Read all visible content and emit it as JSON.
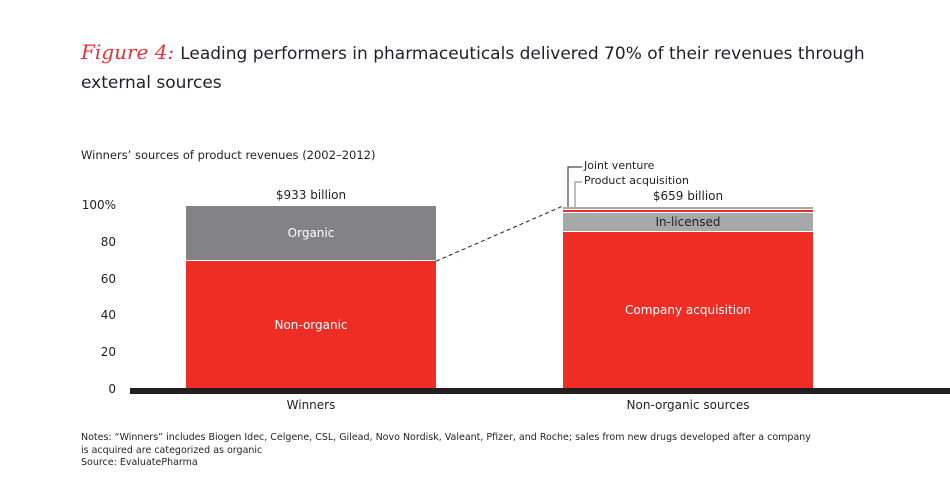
{
  "title": {
    "figure_label": "Figure 4:",
    "text": "Leading performers in pharmaceuticals delivered 70% of their revenues through external sources"
  },
  "chart_data": {
    "type": "bar",
    "stacked": true,
    "subtitle": "Winners’ sources of product revenues (2002–2012)",
    "categories": [
      "Winners",
      "Non-organic sources"
    ],
    "ylim": [
      0,
      100
    ],
    "yticks": [
      "0",
      "20",
      "40",
      "60",
      "80",
      "100%"
    ],
    "ytick_values": [
      0,
      20,
      40,
      60,
      80,
      100
    ],
    "totals": [
      "$933 billion",
      "$659 billion"
    ],
    "bars": [
      {
        "category": "Winners",
        "segments": [
          {
            "name": "Non-organic",
            "value": 70,
            "color": "#ee2d24",
            "label_shown": true
          },
          {
            "name": "Organic",
            "value": 30,
            "color": "#838385",
            "label_shown": true
          }
        ]
      },
      {
        "category": "Non-organic sources",
        "segments": [
          {
            "name": "Company acquisition",
            "value": 86,
            "color": "#ee2d24",
            "label_shown": true
          },
          {
            "name": "In-licensed",
            "value": 10,
            "color": "#a7a8aa",
            "label_shown": true
          },
          {
            "name": "Product acquisition",
            "value": 2,
            "color": "#ee2d24",
            "label_shown": false
          },
          {
            "name": "Joint venture",
            "value": 1.5,
            "color": "#a7a8aa",
            "label_shown": false
          }
        ]
      }
    ],
    "annotations": [
      "Joint venture",
      "Product acquisition"
    ]
  },
  "notes": {
    "line1": "Notes: “Winners” includes Biogen Idec, Celgene, CSL, Gilead, Novo Nordisk, Valeant, Pfizer, and Roche; sales from new drugs developed after a company",
    "line2": "is acquired are categorized as organic",
    "source": "Source: EvaluatePharma"
  }
}
